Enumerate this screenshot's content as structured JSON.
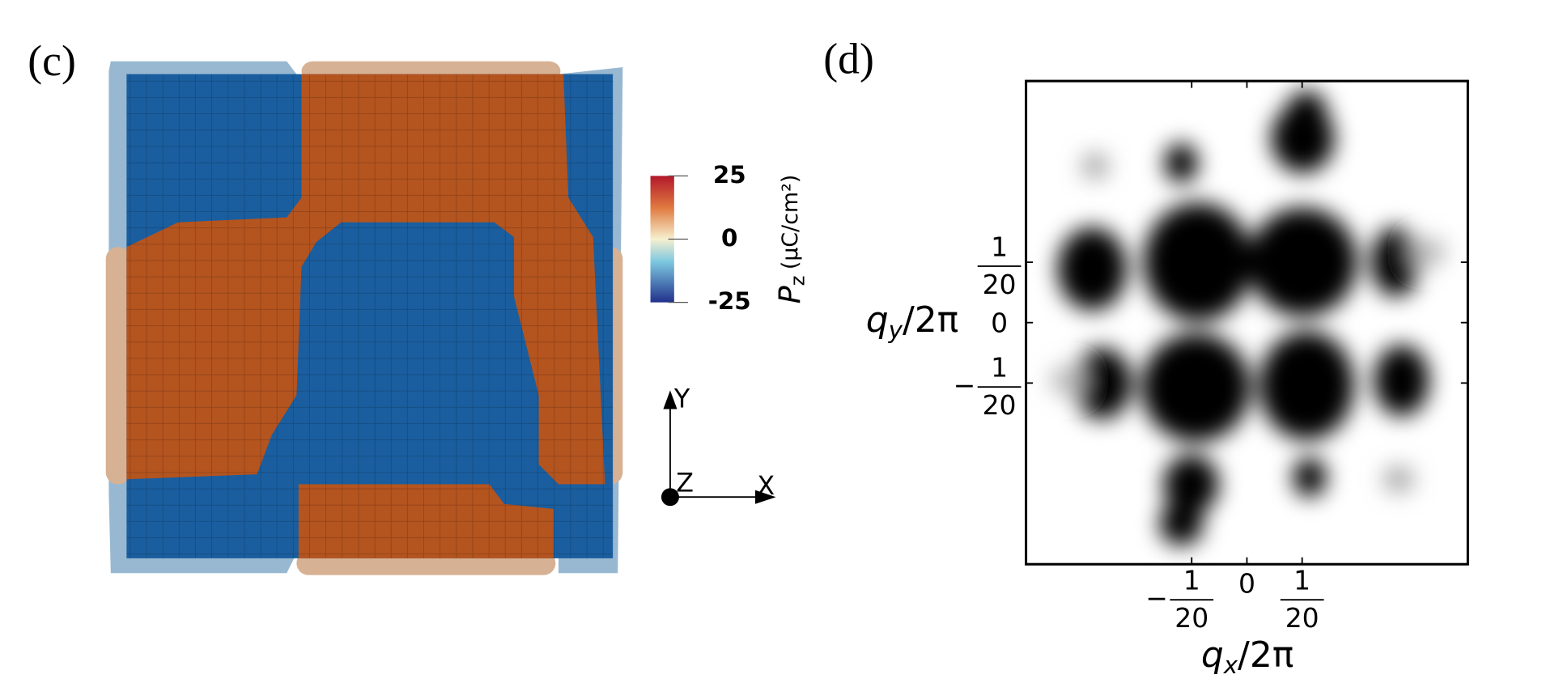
{
  "panels": [
    {
      "label": "(c)",
      "colorbar": {
        "ticks": [
          25,
          0,
          -25
        ],
        "label": {
          "base": "P",
          "sub": "z",
          "unit": "(μC/cm²)"
        }
      },
      "axes_triad": {
        "y": "Y",
        "z": "Z",
        "x": "X"
      }
    },
    {
      "label": "(d)",
      "xlabel": {
        "base": "q",
        "sub": "x",
        "rest": "/2π"
      },
      "ylabel": {
        "base": "q",
        "sub": "y",
        "rest": "/2π"
      },
      "xlim": [
        -0.2,
        0.2
      ],
      "ylim": [
        -0.2,
        0.2
      ],
      "xticks": [
        {
          "value": -0.05,
          "label": {
            "sign": "−",
            "numerator": "1",
            "denominator": "20"
          }
        },
        0,
        {
          "value": 0.05,
          "label": {
            "numerator": "1",
            "denominator": "20"
          }
        }
      ],
      "yticks": [
        {
          "value": 0.05,
          "label": {
            "numerator": "1",
            "denominator": "20"
          }
        },
        0,
        {
          "value": -0.05,
          "label": {
            "sign": "−",
            "numerator": "1",
            "denominator": "20"
          }
        }
      ]
    }
  ]
}
